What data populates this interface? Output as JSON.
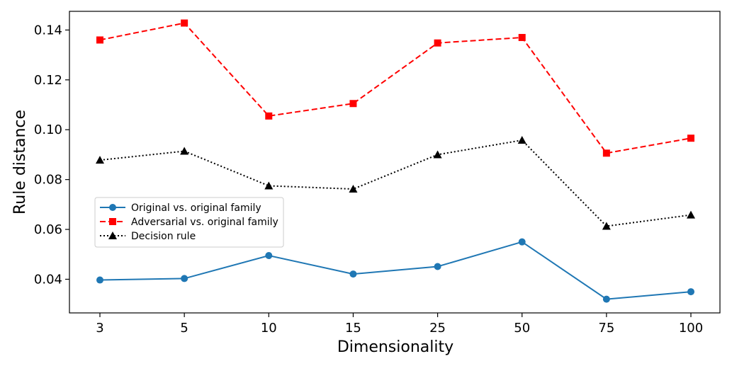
{
  "chart_data": {
    "type": "line",
    "title": "",
    "xlabel": "Dimensionality",
    "ylabel": "Rule distance",
    "categories": [
      "3",
      "5",
      "10",
      "15",
      "25",
      "50",
      "75",
      "100"
    ],
    "ylim": [
      0.0265,
      0.1475
    ],
    "yticks": [
      0.04,
      0.06,
      0.08,
      0.1,
      0.12,
      0.14
    ],
    "ytick_labels": [
      "0.04",
      "0.06",
      "0.08",
      "0.10",
      "0.12",
      "0.14"
    ],
    "grid": false,
    "legend_position": "center-left",
    "series": [
      {
        "name": "Original vs. original family",
        "values": [
          0.0397,
          0.0403,
          0.0495,
          0.0421,
          0.0451,
          0.055,
          0.032,
          0.035
        ],
        "color": "#1f77b4",
        "line_style": "solid",
        "marker": "circle"
      },
      {
        "name": "Adversarial vs. original family",
        "values": [
          0.136,
          0.1428,
          0.1055,
          0.1105,
          0.1348,
          0.137,
          0.0906,
          0.0966
        ],
        "color": "#ff0000",
        "line_style": "dashed",
        "marker": "square"
      },
      {
        "name": "Decision rule",
        "values": [
          0.0878,
          0.0914,
          0.0775,
          0.0762,
          0.09,
          0.0958,
          0.0613,
          0.0658
        ],
        "color": "#000000",
        "line_style": "dotted",
        "marker": "triangle"
      }
    ]
  }
}
